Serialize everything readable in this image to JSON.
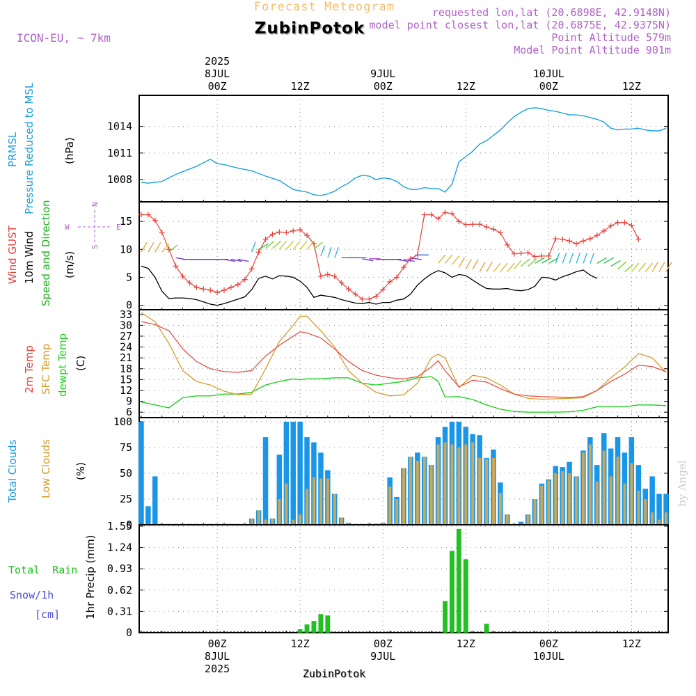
{
  "header": {
    "top_title": "Forecast Meteogram",
    "location": "ZubinPotok",
    "model": "ICON-EU, ~ 7km",
    "requested": "requested lon,lat (20.6898E, 42.9148N)",
    "closest": "model point closest lon,lat (20.6875E, 42.9375N)",
    "point_alt": "Point Altitude 579m",
    "model_alt": "Model Point Altitude 901m",
    "footer_location": "ZubinPotok",
    "credit": "by Angel"
  },
  "time_axis": {
    "top_labels": [
      {
        "t": 0,
        "lines": [
          "2025",
          "8JUL",
          "00Z"
        ]
      },
      {
        "t": 12,
        "lines": [
          "12Z"
        ]
      },
      {
        "t": 24,
        "lines": [
          "9JUL",
          "00Z"
        ]
      },
      {
        "t": 36,
        "lines": [
          "12Z"
        ]
      },
      {
        "t": 48,
        "lines": [
          "10JUL",
          "00Z"
        ]
      },
      {
        "t": 60,
        "lines": [
          "12Z"
        ]
      }
    ],
    "bottom_labels": [
      {
        "t": 0,
        "lines": [
          "00Z",
          "8JUL",
          "2025"
        ]
      },
      {
        "t": 12,
        "lines": [
          "12Z"
        ]
      },
      {
        "t": 24,
        "lines": [
          "00Z",
          "9JUL"
        ]
      },
      {
        "t": 36,
        "lines": [
          "12Z"
        ]
      },
      {
        "t": 48,
        "lines": [
          "00Z",
          "10JUL"
        ]
      },
      {
        "t": 60,
        "lines": [
          "12Z"
        ]
      }
    ],
    "t_range": [
      -11.3,
      65.3
    ]
  },
  "panels": {
    "pressure": {
      "labels": [
        "PRMSL",
        "Pressure Reduced to MSL"
      ],
      "unit": "(hPa)",
      "ticks": [
        "1008",
        "1011",
        "1014"
      ]
    },
    "wind": {
      "labels": [
        "Wind GUST",
        "10m Wind",
        "Speed and Direction"
      ],
      "unit": "(m/s)",
      "ticks": [
        "0",
        "5",
        "10",
        "15"
      ],
      "compass": [
        "N",
        "S",
        "W",
        "E"
      ]
    },
    "temp": {
      "labels": [
        "2m Temp",
        "SFC Temp",
        "dewpt Temp"
      ],
      "unit": "(C)",
      "ticks": [
        "6",
        "9",
        "12",
        "15",
        "18",
        "21",
        "24",
        "27",
        "30",
        "33"
      ]
    },
    "clouds": {
      "labels": [
        "Total Clouds",
        "Low Clouds"
      ],
      "unit": "(%)",
      "ticks": [
        "0",
        "25",
        "50",
        "75",
        "100"
      ]
    },
    "precip": {
      "labels": [
        "Total  Rain",
        "Snow/1h",
        "[cm]"
      ],
      "unit": "1hr Precip (mm)",
      "ticks": [
        "0",
        "0.31",
        "0.62",
        "0.93",
        "1.24",
        "1.55"
      ]
    }
  },
  "colors": {
    "pressure": "#1a9fe0",
    "gust": "#e8403a",
    "wind": "#000000",
    "wind_label": "#1fb01f",
    "t2m": "#e8403a",
    "tsfc": "#d89a2a",
    "dewpt": "#1fd01f",
    "total_clouds": "#1a96e8",
    "low_clouds": "#c8a85a",
    "rain": "#22c022",
    "snow": "#4a4ae0",
    "header": "#b060c8",
    "top_title": "#f0c070",
    "grid": "#888888"
  },
  "chart_data": {
    "type": "meteogram",
    "time_unit": "hours from 8JUL 00Z",
    "pressure": {
      "ylim": [
        1005.5,
        1017.5
      ],
      "t": [
        -11,
        -10,
        -8,
        -6,
        -5,
        -3,
        -1,
        0,
        1,
        3,
        5,
        7,
        9,
        11,
        13,
        14,
        15,
        16,
        17,
        18,
        19,
        20,
        21,
        22,
        23,
        24,
        25,
        26,
        27,
        28,
        29,
        30,
        31,
        32,
        33,
        34,
        35,
        36,
        37,
        38,
        39,
        40,
        41,
        42,
        43,
        44,
        45,
        46,
        47,
        48,
        49,
        50,
        51,
        52,
        53,
        54,
        55,
        56,
        57,
        58,
        59,
        60,
        61,
        62,
        63,
        64,
        65
      ],
      "v": [
        1007.7,
        1007.6,
        1007.8,
        1008.6,
        1008.9,
        1009.5,
        1010.3,
        1009.8,
        1009.7,
        1009.3,
        1009.0,
        1008.4,
        1007.9,
        1006.9,
        1006.6,
        1006.3,
        1006.2,
        1006.4,
        1006.7,
        1007.2,
        1007.6,
        1008.2,
        1008.5,
        1008.4,
        1008.0,
        1008.2,
        1008.1,
        1007.8,
        1007.2,
        1006.9,
        1006.9,
        1007.1,
        1007.0,
        1007.0,
        1006.6,
        1007.5,
        1010.0,
        1010.6,
        1011.2,
        1012.0,
        1012.4,
        1013.0,
        1013.6,
        1014.4,
        1015.1,
        1015.6,
        1016.0,
        1016.1,
        1016.0,
        1015.8,
        1015.7,
        1015.5,
        1015.3,
        1015.3,
        1015.2,
        1015.0,
        1014.8,
        1014.5,
        1013.8,
        1013.6,
        1013.7,
        1013.7,
        1013.8,
        1013.6,
        1013.5,
        1013.5,
        1013.8
      ]
    },
    "gust": {
      "ylim": [
        -0.8,
        18.5
      ],
      "t": [
        -11,
        -10,
        -9,
        -8,
        -7,
        -6,
        -5,
        -4,
        -3,
        -2,
        -1,
        0,
        1,
        2,
        3,
        4,
        5,
        6,
        7,
        8,
        9,
        10,
        11,
        12,
        13,
        14,
        15,
        16,
        17,
        18,
        19,
        20,
        21,
        22,
        23,
        24,
        25,
        26,
        27,
        28,
        29,
        30,
        31,
        32,
        33,
        34,
        35,
        36,
        37,
        38,
        39,
        40,
        41,
        42,
        43,
        44,
        45,
        46,
        47,
        48,
        49,
        50,
        51,
        52,
        53,
        54,
        55,
        56,
        57,
        58,
        59,
        60,
        61,
        62,
        63,
        64,
        65
      ],
      "v": [
        16.2,
        16.2,
        15.2,
        13.0,
        10.0,
        7.0,
        5.2,
        4.0,
        3.2,
        2.9,
        2.7,
        2.3,
        2.7,
        3.2,
        3.7,
        4.6,
        6.5,
        9.5,
        11.8,
        12.7,
        13.1,
        13.0,
        13.3,
        13.5,
        12.5,
        11.0,
        5.2,
        5.5,
        5.2,
        4.0,
        2.9,
        2.0,
        1.1,
        1.1,
        1.6,
        2.8,
        4.2,
        5.0,
        6.8,
        8.3,
        9.0,
        16.2,
        16.2,
        15.5,
        16.6,
        16.4,
        15.0,
        14.4,
        14.5,
        14.5,
        14.0,
        13.6,
        13.0,
        10.8,
        9.2,
        9.3,
        9.4,
        8.7,
        8.8,
        8.8,
        11.9,
        11.8,
        11.5,
        11.0,
        11.5,
        11.9,
        12.5,
        13.3,
        14.2,
        14.8,
        14.8,
        14.3,
        11.8
      ],
      "wind_t": [
        -11,
        -10,
        -9,
        -8,
        -7,
        -6,
        -5,
        -4,
        -3,
        -2,
        -1,
        0,
        1,
        2,
        3,
        4,
        5,
        6,
        7,
        8,
        9,
        10,
        11,
        12,
        13,
        14,
        15,
        16,
        17,
        18,
        19,
        20,
        21,
        22,
        23,
        24,
        25,
        26,
        27,
        28,
        29,
        30,
        31,
        32,
        33,
        34,
        35,
        36,
        37,
        38,
        39,
        40,
        41,
        42,
        43,
        44,
        45,
        46,
        47,
        48,
        49,
        50,
        51,
        52,
        53,
        54,
        55,
        56,
        57,
        58,
        59,
        60,
        61,
        62,
        63,
        64,
        65
      ],
      "wind_v": [
        7.0,
        6.6,
        5.0,
        2.5,
        1.2,
        1.3,
        1.3,
        1.2,
        1.0,
        0.6,
        0.2,
        0.0,
        0.3,
        0.7,
        1.1,
        1.5,
        2.8,
        4.8,
        5.2,
        4.7,
        5.3,
        5.2,
        5.0,
        4.3,
        3.2,
        1.4,
        1.8,
        1.6,
        1.4,
        1.0,
        0.7,
        0.4,
        0.3,
        0.5,
        0.2,
        0.5,
        0.5,
        0.9,
        1.1,
        2.0,
        3.6,
        4.7,
        5.6,
        6.2,
        5.8,
        5.0,
        5.5,
        5.3,
        4.5,
        3.7,
        3.0,
        2.9,
        2.9,
        3.0,
        2.7,
        2.6,
        2.8,
        3.4,
        5.0,
        4.9,
        4.5,
        5.1,
        5.5,
        6.0,
        6.3,
        5.4,
        4.8
      ]
    },
    "temp": {
      "ylim": [
        4.5,
        34.3
      ],
      "t": [
        -11,
        -9,
        -7,
        -5,
        -3,
        -1,
        1,
        3,
        5,
        7,
        9,
        11,
        12,
        13,
        15,
        17,
        19,
        21,
        23,
        25,
        27,
        29,
        31,
        32,
        33,
        35,
        37,
        39,
        41,
        43,
        45,
        47,
        49,
        51,
        53,
        55,
        57,
        59,
        61,
        63,
        65
      ],
      "t2m": [
        31.0,
        30.2,
        28.5,
        23.5,
        20.0,
        18.0,
        17.2,
        17.0,
        17.5,
        21.5,
        24.5,
        27.0,
        28.2,
        27.9,
        26.5,
        23.5,
        20.0,
        17.5,
        16.2,
        15.5,
        15.2,
        15.8,
        18.5,
        20.2,
        17.5,
        13.0,
        14.8,
        14.3,
        12.5,
        11.0,
        10.5,
        10.3,
        10.2,
        10.0,
        10.3,
        12.0,
        14.5,
        16.5,
        19.0,
        18.6,
        17.2
      ],
      "tsfc": [
        33.5,
        31.0,
        25.0,
        17.5,
        14.5,
        13.5,
        11.8,
        10.8,
        11.0,
        18.0,
        25.5,
        30.0,
        32.5,
        32.5,
        28.5,
        24.0,
        17.5,
        14.0,
        11.5,
        10.5,
        10.8,
        14.0,
        21.0,
        22.0,
        21.0,
        12.8,
        16.2,
        15.5,
        13.5,
        11.0,
        9.8,
        9.6,
        9.7,
        9.8,
        10.0,
        12.0,
        15.5,
        18.5,
        22.2,
        21.0,
        17.0
      ],
      "dewpt": [
        8.8,
        8.0,
        7.2,
        10.0,
        10.5,
        10.5,
        11.0,
        11.0,
        11.5,
        13.5,
        14.5,
        15.2,
        15.0,
        15.2,
        15.2,
        15.5,
        15.5,
        14.0,
        13.5,
        14.0,
        14.5,
        15.5,
        15.8,
        14.5,
        10.2,
        10.3,
        9.5,
        8.0,
        6.8,
        6.2,
        6.0,
        6.0,
        6.0,
        6.1,
        6.5,
        7.5,
        7.5,
        7.5,
        8.0,
        8.0,
        7.8
      ]
    },
    "clouds": {
      "ylim": [
        0,
        100
      ],
      "t": [
        -11,
        -10,
        -9,
        -8,
        -7,
        -6,
        -5,
        -4,
        -3,
        -2,
        -1,
        0,
        1,
        2,
        3,
        4,
        5,
        6,
        7,
        8,
        9,
        10,
        11,
        12,
        13,
        14,
        15,
        16,
        17,
        18,
        19,
        20,
        21,
        22,
        23,
        24,
        25,
        26,
        27,
        28,
        29,
        30,
        31,
        32,
        33,
        34,
        35,
        36,
        37,
        38,
        39,
        40,
        41,
        42,
        43,
        44,
        45,
        46,
        47,
        48,
        49,
        50,
        51,
        52,
        53,
        54,
        55,
        56,
        57,
        58,
        59,
        60,
        61,
        62,
        63,
        64,
        65
      ],
      "total": [
        100,
        18,
        47,
        0,
        0,
        0,
        0,
        0,
        0,
        0,
        0,
        0,
        0,
        0,
        0,
        0,
        6,
        14,
        85,
        6,
        68,
        100,
        100,
        100,
        85,
        80,
        70,
        53,
        30,
        7,
        2,
        0,
        0,
        1,
        1,
        2,
        46,
        27,
        55,
        66,
        70,
        66,
        58,
        85,
        95,
        100,
        100,
        95,
        88,
        87,
        65,
        73,
        41,
        10,
        0,
        3,
        10,
        25,
        40,
        44,
        57,
        56,
        61,
        47,
        72,
        85,
        58,
        89,
        74,
        85,
        70,
        85,
        58,
        35,
        47,
        30,
        30
      ],
      "low": [
        0,
        0,
        0,
        0,
        0,
        0,
        0,
        0,
        0,
        0,
        0,
        0,
        0,
        0,
        0,
        0,
        6,
        14,
        5,
        6,
        25,
        40,
        5,
        10,
        35,
        46,
        45,
        45,
        30,
        7,
        2,
        0,
        0,
        0,
        0,
        2,
        37,
        25,
        55,
        66,
        62,
        66,
        58,
        78,
        80,
        78,
        75,
        78,
        80,
        65,
        64,
        65,
        31,
        10,
        0,
        0,
        10,
        25,
        38,
        43,
        50,
        52,
        50,
        47,
        70,
        78,
        42,
        72,
        47,
        66,
        40,
        60,
        33,
        25,
        12,
        5,
        12
      ]
    },
    "precip": {
      "ylim": [
        0,
        1.55
      ],
      "t": [
        12,
        13,
        14,
        15,
        16,
        33,
        34,
        35,
        36,
        37,
        39
      ],
      "rain": [
        0.05,
        0.12,
        0.17,
        0.27,
        0.25,
        0.46,
        1.19,
        1.51,
        1.07,
        0.0,
        0.13
      ],
      "snow": [
        0,
        0,
        0,
        0,
        0,
        0,
        0,
        0,
        0,
        0,
        0
      ]
    }
  }
}
